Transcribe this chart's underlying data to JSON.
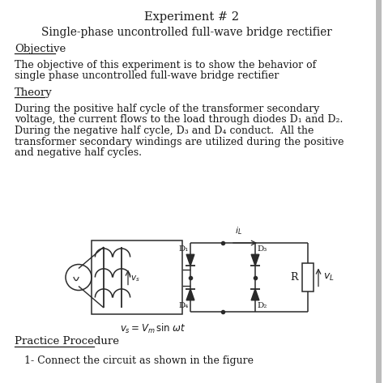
{
  "title": "Experiment # 2",
  "subtitle": "Single-phase uncontrolled full-wave bridge rectifier",
  "objective_heading": "Objective",
  "objective_text1": "The objective of this experiment is to show the behavior of",
  "objective_text2": "single phase uncontrolled full-wave bridge rectifier",
  "theory_heading": "Theory",
  "theory_line1": "During the positive half cycle of the transformer secondary",
  "theory_line2": "voltage, the current flows to the load through diodes D₁ and D₂.",
  "theory_line3": "During the negative half cycle, D₃ and D₄ conduct.  All the",
  "theory_line4": "transformer secondary windings are utilized during the positive",
  "theory_line5": "and negative half cycles.",
  "practice_heading": "Practice Procedure",
  "practice_item": "1- Connect the circuit as shown in the figure",
  "bg_color": "#ffffff",
  "text_color": "#1a1a1a",
  "line_color": "#2a2a2a"
}
